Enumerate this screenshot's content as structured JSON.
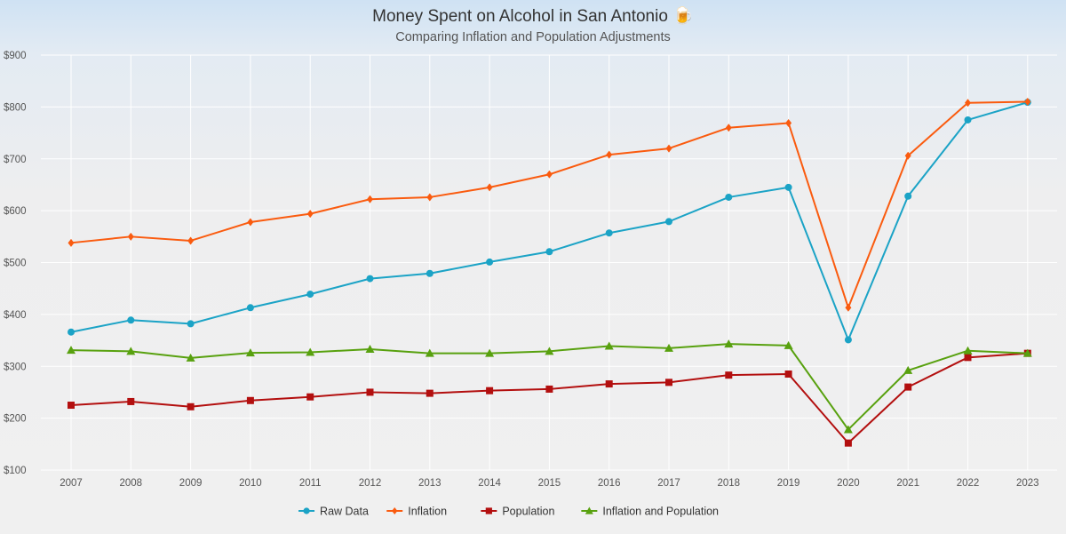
{
  "chart_data": {
    "type": "line",
    "title": "Money Spent on Alcohol in San Antonio 🍺",
    "subtitle": "Comparing Inflation and Population Adjustments",
    "xlabel": "",
    "ylabel": "",
    "categories": [
      "2007",
      "2008",
      "2009",
      "2010",
      "2011",
      "2012",
      "2013",
      "2014",
      "2015",
      "2016",
      "2017",
      "2018",
      "2019",
      "2020",
      "2021",
      "2022",
      "2023"
    ],
    "ylim": [
      100,
      900
    ],
    "yticks": [
      100,
      200,
      300,
      400,
      500,
      600,
      700,
      800,
      900
    ],
    "ytick_labels": [
      "$100",
      "$200",
      "$300",
      "$400",
      "$500",
      "$600",
      "$700",
      "$800",
      "$900"
    ],
    "grid": true,
    "legend_position": "bottom",
    "series": [
      {
        "name": "Raw Data",
        "color": "#1ba3c6",
        "marker": "circle",
        "values": [
          366,
          389,
          382,
          413,
          439,
          469,
          479,
          501,
          521,
          557,
          579,
          626,
          645,
          351,
          628,
          775,
          809
        ]
      },
      {
        "name": "Inflation",
        "color": "#fa5b0f",
        "marker": "diamond",
        "values": [
          538,
          550,
          542,
          578,
          594,
          622,
          626,
          645,
          670,
          708,
          720,
          760,
          769,
          413,
          706,
          808,
          810
        ]
      },
      {
        "name": "Population",
        "color": "#b30f0f",
        "marker": "square",
        "values": [
          225,
          232,
          222,
          234,
          241,
          250,
          248,
          253,
          256,
          266,
          269,
          283,
          285,
          152,
          260,
          317,
          325
        ]
      },
      {
        "name": "Inflation and Population",
        "color": "#58a10f",
        "marker": "triangle",
        "values": [
          331,
          329,
          316,
          326,
          327,
          333,
          325,
          325,
          329,
          339,
          335,
          343,
          340,
          178,
          292,
          330,
          325
        ]
      }
    ]
  }
}
